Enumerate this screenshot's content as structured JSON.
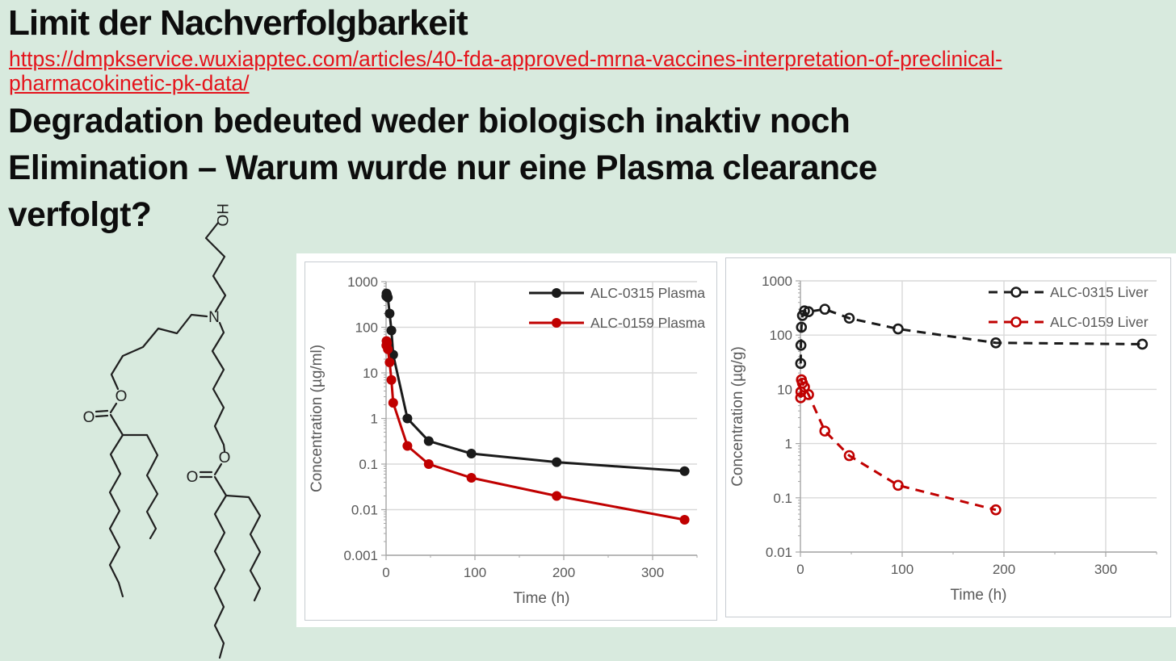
{
  "slide": {
    "background_color": "#d8eade",
    "title": "Limit der Nachverfolgbarkeit",
    "link": {
      "href": "https://dmpkservice.wuxiapptec.com/articles/40-fda-approved-mrna-vaccines-interpretation-of-preclinical-pharmacokinetic-pk-data/",
      "lines": [
        "https://dmpkservice.wuxiapptec.com/articles/40-fda-approved-mrna-vaccines-interpretation-of-preclinical-",
        "pharmacokinetic-pk-data/"
      ],
      "color": "#e4131b"
    },
    "heading_lines": [
      "Degradation bedeuted weder biologisch inaktiv noch",
      "Elimination – Warum wurde nur eine Plasma clearance",
      "verfolgt?"
    ]
  },
  "molecule": {
    "name": "ALC-0315 lipid structure drawing",
    "labels": {
      "hydroxyl": "HO",
      "amine": "N",
      "ester1_oxygen": "O",
      "ester1_carbonyl_oxygen": "O",
      "ester2_oxygen": "O",
      "ester2_carbonyl_oxygen": "O"
    }
  },
  "chart_style": {
    "axis_text_color": "#595959",
    "gridline_color": "#d9d9d9",
    "axis_line_color": "#a6a6a6"
  },
  "chart_data": [
    {
      "type": "line",
      "title": "",
      "xlabel": "Time (h)",
      "ylabel": "Concentration (µg/ml)",
      "xlim": [
        0,
        350
      ],
      "x_ticks": [
        0,
        100,
        200,
        300
      ],
      "y_scale": "log",
      "ylim": [
        0.001,
        1000
      ],
      "y_ticks": [
        1000,
        100,
        10,
        1,
        0.1,
        0.01,
        0.001
      ],
      "grid": true,
      "legend_position": "top-right",
      "series": [
        {
          "name": "ALC-0315 Plasma",
          "color": "#1a1a1a",
          "line_style": "solid",
          "marker": "filled-circle",
          "x": [
            0.25,
            0.5,
            1,
            2,
            4,
            6,
            8,
            24,
            48,
            96,
            192,
            336
          ],
          "y": [
            480,
            550,
            520,
            450,
            200,
            85,
            25,
            1.0,
            0.32,
            0.17,
            0.11,
            0.07
          ]
        },
        {
          "name": "ALC-0159 Plasma",
          "color": "#c00000",
          "line_style": "solid",
          "marker": "filled-circle",
          "x": [
            0.25,
            0.5,
            1,
            2,
            4,
            6,
            8,
            24,
            48,
            96,
            192,
            336
          ],
          "y": [
            40,
            50,
            45,
            33,
            17,
            7,
            2.2,
            0.25,
            0.1,
            0.05,
            0.02,
            0.006
          ]
        }
      ]
    },
    {
      "type": "line",
      "title": "",
      "xlabel": "Time (h)",
      "ylabel": "Concentration (µg/g)",
      "xlim": [
        0,
        350
      ],
      "x_ticks": [
        0,
        100,
        200,
        300
      ],
      "y_scale": "log",
      "ylim": [
        0.01,
        1000
      ],
      "y_ticks": [
        1000,
        100,
        10,
        1,
        0.1,
        0.01
      ],
      "grid": true,
      "legend_position": "top-right",
      "series": [
        {
          "name": "ALC-0315 Liver",
          "color": "#1a1a1a",
          "line_style": "dashed",
          "marker": "open-circle",
          "x": [
            0.25,
            0.5,
            1,
            2,
            4,
            8,
            24,
            48,
            96,
            192,
            336
          ],
          "y": [
            30,
            65,
            140,
            230,
            280,
            270,
            300,
            205,
            130,
            72,
            68
          ]
        },
        {
          "name": "ALC-0159 Liver",
          "color": "#c00000",
          "line_style": "dashed",
          "marker": "open-circle",
          "x": [
            0.25,
            0.5,
            1,
            2,
            4,
            8,
            24,
            48,
            96,
            192
          ],
          "y": [
            7,
            9,
            15,
            13,
            11,
            8,
            1.7,
            0.6,
            0.17,
            0.06
          ]
        }
      ]
    }
  ]
}
